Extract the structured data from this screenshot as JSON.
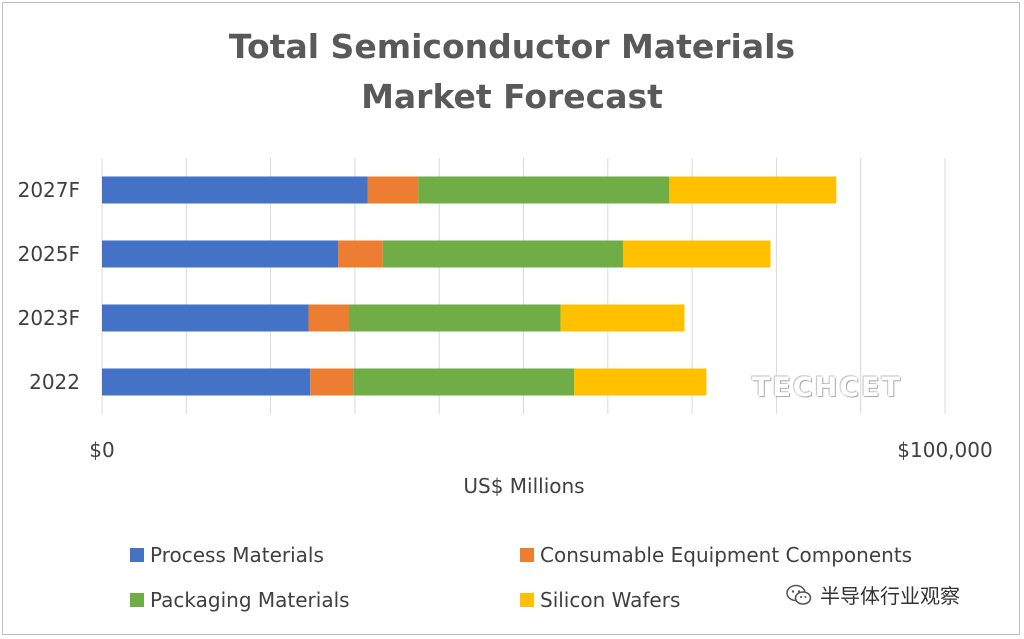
{
  "colors": {
    "process": "#4472C4",
    "consumable": "#ED7D31",
    "packaging": "#70AD47",
    "wafers": "#FFC000",
    "gridline": "#d9d9d9",
    "text": "#404040",
    "title": "#595959"
  },
  "chart_data": {
    "type": "bar",
    "orientation": "horizontal",
    "stacked": true,
    "title": "Total Semiconductor Materials Market Forecast",
    "title_lines": [
      "Total Semiconductor Materials",
      "Market Forecast"
    ],
    "xlabel": "US$ Millions",
    "ylabel": "",
    "xlim": [
      0,
      100000
    ],
    "x_tick_labels": [
      "$0",
      "$100,000"
    ],
    "grid": true,
    "legend_position": "bottom",
    "categories": [
      "2027F",
      "2025F",
      "2023F",
      "2022"
    ],
    "series": [
      {
        "name": "Process Materials",
        "color_key": "process",
        "values": [
          31500,
          28000,
          24500,
          24700
        ]
      },
      {
        "name": "Consumable Equipment Components",
        "color_key": "consumable",
        "values": [
          6000,
          5300,
          4800,
          5100
        ]
      },
      {
        "name": "Packaging Materials",
        "color_key": "packaging",
        "values": [
          29800,
          28500,
          25100,
          26200
        ]
      },
      {
        "name": "Silicon Wafers",
        "color_key": "wafers",
        "values": [
          19800,
          17500,
          14700,
          15700
        ]
      }
    ]
  },
  "watermarks": {
    "logo": "TECHCET",
    "wechat_account": "半导体行业观察",
    "wechat_icon": "wechat-icon"
  }
}
